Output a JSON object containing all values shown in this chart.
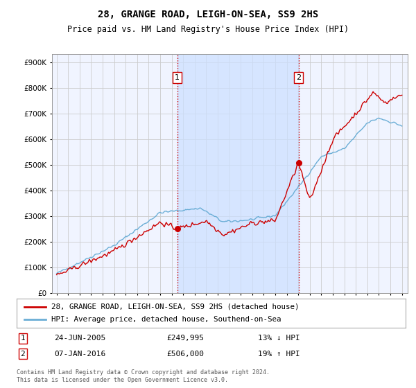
{
  "title": "28, GRANGE ROAD, LEIGH-ON-SEA, SS9 2HS",
  "subtitle": "Price paid vs. HM Land Registry's House Price Index (HPI)",
  "sale1_year": 2005.48,
  "sale1_price": 249995,
  "sale2_year": 2016.02,
  "sale2_price": 506000,
  "legend1": "28, GRANGE ROAD, LEIGH-ON-SEA, SS9 2HS (detached house)",
  "legend2": "HPI: Average price, detached house, Southend-on-Sea",
  "footer": "Contains HM Land Registry data © Crown copyright and database right 2024.\nThis data is licensed under the Open Government Licence v3.0.",
  "hpi_color": "#6baed6",
  "price_color": "#cc0000",
  "vline_color": "#cc0000",
  "bg_color": "#f0f4ff",
  "shade_color": "#cce0ff",
  "grid_color": "#cccccc",
  "ylim": [
    0,
    900000
  ],
  "ylabel_900": "£900K",
  "ann1_date": "24-JUN-2005",
  "ann1_price": "£249,995",
  "ann1_hpi": "13% ↓ HPI",
  "ann2_date": "07-JAN-2016",
  "ann2_price": "£506,000",
  "ann2_hpi": "19% ↑ HPI"
}
